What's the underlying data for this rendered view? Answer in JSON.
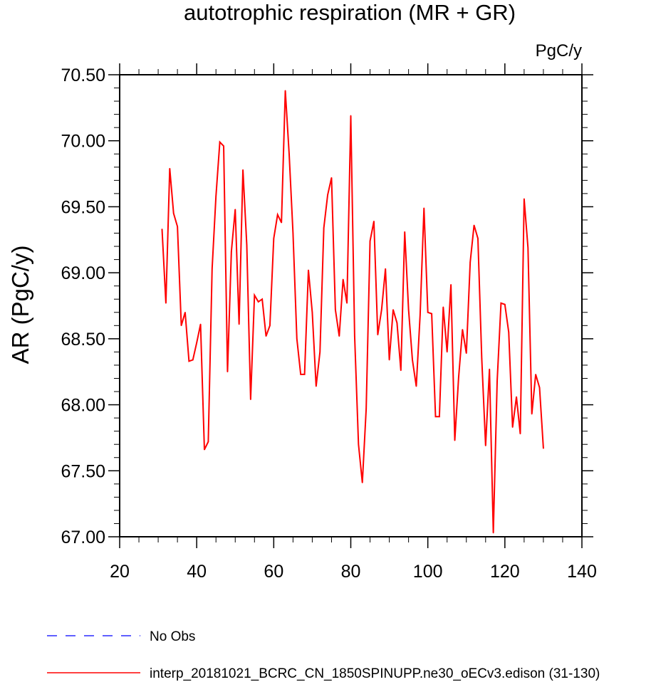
{
  "chart_data": {
    "type": "line",
    "title": "autotrophic respiration (MR + GR)",
    "units": "PgC/y",
    "xlabel": "",
    "ylabel": "AR  (PgC/y)",
    "xlim": [
      20,
      140
    ],
    "ylim": [
      67.0,
      70.5
    ],
    "xticks": [
      20,
      40,
      60,
      80,
      100,
      120,
      140
    ],
    "xtick_labels": [
      "20",
      "40",
      "60",
      "80",
      "100",
      "120",
      "140"
    ],
    "yticks": [
      67.0,
      67.5,
      68.0,
      68.5,
      69.0,
      69.5,
      70.0,
      70.5
    ],
    "ytick_labels": [
      "67.00",
      "67.50",
      "68.00",
      "68.50",
      "69.00",
      "69.50",
      "70.00",
      "70.50"
    ],
    "grid": false,
    "legend_position": "bottom",
    "series": [
      {
        "name": "interp_20181021_BCRC_CN_1850SPINUPP.ne30_oECv3.edison (31-130)",
        "color": "#ff0000",
        "dash": "solid",
        "x": [
          31,
          32,
          33,
          34,
          35,
          36,
          37,
          38,
          39,
          40,
          41,
          42,
          43,
          44,
          45,
          46,
          47,
          48,
          49,
          50,
          51,
          52,
          53,
          54,
          55,
          56,
          57,
          58,
          59,
          60,
          61,
          62,
          63,
          64,
          65,
          66,
          67,
          68,
          69,
          70,
          71,
          72,
          73,
          74,
          75,
          76,
          77,
          78,
          79,
          80,
          81,
          82,
          83,
          84,
          85,
          86,
          87,
          88,
          89,
          90,
          91,
          92,
          93,
          94,
          95,
          96,
          97,
          98,
          99,
          100,
          101,
          102,
          103,
          104,
          105,
          106,
          107,
          108,
          109,
          110,
          111,
          112,
          113,
          114,
          115,
          116,
          117,
          118,
          119,
          120,
          121,
          122,
          123,
          124,
          125,
          126,
          127,
          128,
          129,
          130
        ],
        "y": [
          69.33,
          68.77,
          69.79,
          69.45,
          69.35,
          68.6,
          68.7,
          68.33,
          68.34,
          68.47,
          68.61,
          67.66,
          67.72,
          69.03,
          69.58,
          69.99,
          69.96,
          68.25,
          69.16,
          69.48,
          68.61,
          69.78,
          69.21,
          68.04,
          68.83,
          68.78,
          68.8,
          68.52,
          68.6,
          69.26,
          69.44,
          69.38,
          70.38,
          69.9,
          69.3,
          68.5,
          68.23,
          68.23,
          69.02,
          68.7,
          68.14,
          68.4,
          69.34,
          69.59,
          69.72,
          68.72,
          68.52,
          68.95,
          68.77,
          70.19,
          68.52,
          67.7,
          67.41,
          67.97,
          69.24,
          69.39,
          68.53,
          68.72,
          69.03,
          68.34,
          68.72,
          68.62,
          68.26,
          69.31,
          68.72,
          68.34,
          68.14,
          68.68,
          69.49,
          68.7,
          68.69,
          67.91,
          67.91,
          68.74,
          68.4,
          68.91,
          67.73,
          68.21,
          68.57,
          68.39,
          69.08,
          69.36,
          69.26,
          68.35,
          67.69,
          68.27,
          67.03,
          68.18,
          68.77,
          68.76,
          68.55,
          67.83,
          68.06,
          67.78,
          69.56,
          69.19,
          67.93,
          68.23,
          68.13,
          67.67
        ]
      }
    ],
    "legend": [
      {
        "label": "No Obs",
        "color": "#0000ff",
        "dash": "dashed"
      },
      {
        "label": "interp_20181021_BCRC_CN_1850SPINUPP.ne30_oECv3.edison (31-130)",
        "color": "#ff0000",
        "dash": "solid"
      }
    ]
  }
}
